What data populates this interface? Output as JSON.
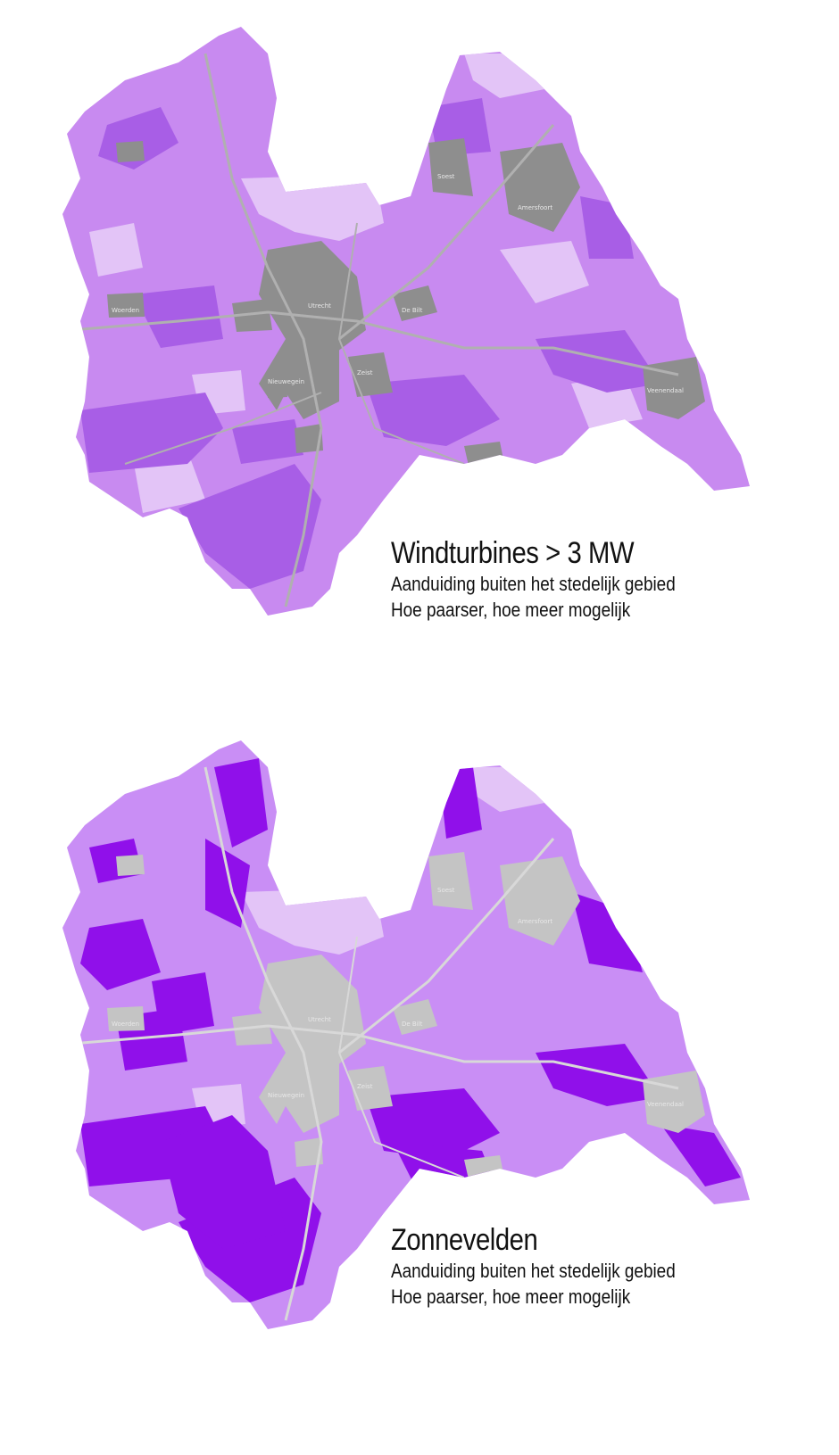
{
  "maps": [
    {
      "id": "wind",
      "title": "Windturbines > 3 MW",
      "line1": "Aanduiding buiten het stedelijk gebied",
      "line2": "Hoe paarser, hoe meer mogelijk",
      "colors": {
        "light": "#e3c4f7",
        "mid": "#c88af0",
        "strong": "#a85ee6",
        "urban": "#8e8e8e",
        "road": "#b0b0b0"
      }
    },
    {
      "id": "solar",
      "title": "Zonnevelden",
      "line1": "Aanduiding buiten het stedelijk gebied",
      "line2": "Hoe paarser, hoe meer mogelijk",
      "colors": {
        "light": "#e3c4f7",
        "mid": "#c98ef5",
        "strong": "#9010ea",
        "urban": "#c4c4c4",
        "road": "#d8d8d8"
      }
    }
  ],
  "place_names": [
    "Utrecht",
    "Amersfoort",
    "Zeist",
    "Nieuwegein",
    "Veenendaal",
    "Soest",
    "Woerden",
    "De Bilt"
  ]
}
